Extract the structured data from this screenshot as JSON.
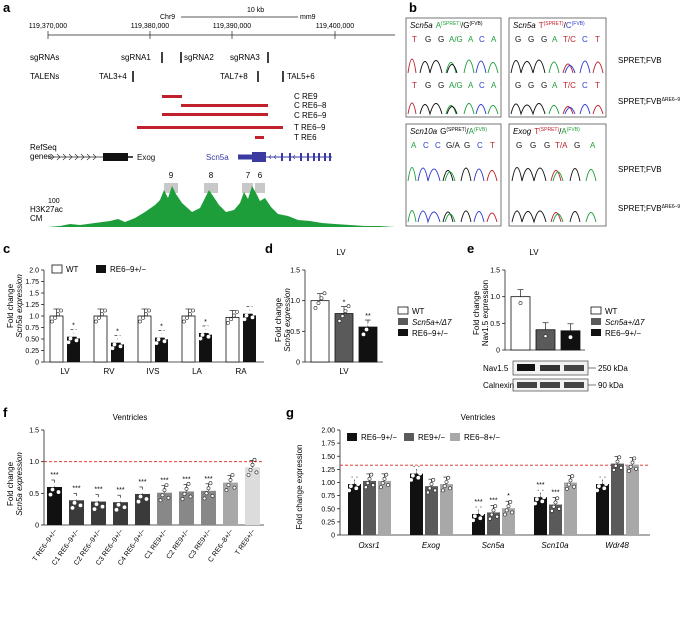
{
  "panel_labels": {
    "a": "a",
    "b": "b",
    "c": "c",
    "d": "d",
    "e": "e",
    "f": "f",
    "g": "g"
  },
  "panel_a": {
    "genome_coords": [
      "119,370,000",
      "119,380,000",
      "119,390,000",
      "119,400,000"
    ],
    "chrom": "Chr9",
    "scale": "10 kb",
    "assembly": "mm9",
    "row_labels": {
      "sgrnas": "sgRNAs",
      "talens": "TALENs",
      "refseq": "RefSeq",
      "refseq2": "genes",
      "h3k": "H3K27ac",
      "cm": "CM",
      "hundred": "100"
    },
    "sgrna_names": [
      "sgRNA1",
      "sgRNA2",
      "sgRNA3"
    ],
    "talen_names": [
      "TAL3+4",
      "TAL7+8",
      "TAL5+6"
    ],
    "deletions": [
      "C RE9",
      "C RE6–8",
      "C RE6–9",
      "T RE6–9",
      "T RE6"
    ],
    "genes": [
      "Exog",
      "Scn5a"
    ],
    "re_numbers": [
      "9",
      "8",
      "7",
      "6"
    ]
  },
  "panel_b": {
    "boxes": [
      {
        "gene": "Scn5a",
        "allele_a": "A",
        "allele_a_strain": "(SPRET)",
        "sep": "/",
        "allele_b": "G",
        "allele_b_strain": "(FVB)",
        "bases": [
          "T",
          "G",
          "G",
          "A/G",
          "A",
          "C",
          "A"
        ]
      },
      {
        "gene": "Scn5a",
        "allele_a": "T",
        "allele_a_strain": "(SPRET)",
        "sep": "/",
        "allele_b": "C",
        "allele_b_strain": "(FVB)",
        "bases": [
          "G",
          "G",
          "G",
          "A",
          "T/C",
          "C",
          "T"
        ]
      },
      {
        "gene": "Scn10a",
        "allele_a": "G",
        "allele_a_strain": "(SPRET)",
        "sep": "/",
        "allele_b": "A",
        "allele_b_strain": "(FVB)",
        "bases": [
          "A",
          "C",
          "C",
          "G/A",
          "G",
          "C",
          "T"
        ]
      },
      {
        "gene": "Exog",
        "allele_a": "T",
        "allele_a_strain": "(SPRET)",
        "sep": "/",
        "allele_b": "A",
        "allele_b_strain": "(FVB)",
        "bases": [
          "G",
          "G",
          "G",
          "T/A",
          "G",
          "A"
        ]
      }
    ],
    "row_labels": [
      "SPRET;FVB",
      "SPRET;FVB",
      "SPRET;FVB",
      "SPRET;FVB"
    ],
    "row_superscripts": [
      "",
      "ΔRE6–9",
      "",
      "ΔRE6–9"
    ]
  },
  "chart_data": [
    {
      "panel": "c",
      "type": "bar",
      "categories": [
        "LV",
        "RV",
        "IVS",
        "LA",
        "RA"
      ],
      "series": [
        {
          "name": "WT",
          "values": [
            1.0,
            1.0,
            1.0,
            1.0,
            0.97
          ]
        },
        {
          "name": "RE6–9+/−",
          "values": [
            0.55,
            0.42,
            0.53,
            0.63,
            1.05
          ]
        }
      ],
      "stars": [
        "*",
        "*",
        "*",
        "*",
        ""
      ],
      "ylabel": "Fold change",
      "ylabel2": "Scn5a expression",
      "ylim": [
        0,
        2.0
      ],
      "yticks": [
        "0",
        "0.25",
        "0.50",
        "0.75",
        "1.0",
        "1.25",
        "1.5",
        "1.75",
        "2.0"
      ]
    },
    {
      "panel": "d",
      "type": "bar",
      "title": "LV",
      "categories": [
        "LV"
      ],
      "series": [
        {
          "name": "WT",
          "values": [
            1.0
          ]
        },
        {
          "name": "Scn5a+/Δ7",
          "values": [
            0.79
          ]
        },
        {
          "name": "RE6–9+/−",
          "values": [
            0.57
          ]
        }
      ],
      "stars": [
        "",
        "*",
        "**"
      ],
      "ylabel": "Fold change",
      "ylabel2": "Scn5a expression",
      "ylim": [
        0,
        1.5
      ],
      "yticks": [
        "0",
        "0.5",
        "1.0",
        "1.5"
      ]
    },
    {
      "panel": "e",
      "type": "bar",
      "title": "LV",
      "categories": [
        "WT",
        "Scn5a+/Δ7",
        "RE6–9+/−"
      ],
      "values": [
        1.0,
        0.38,
        0.36
      ],
      "ylabel": "Fold change",
      "ylabel2": "Nav1.5 expression",
      "ylim": [
        0,
        1.5
      ],
      "yticks": [
        "0",
        "0.5",
        "1.0",
        "1.5"
      ],
      "blot_labels": [
        "Nav1.5",
        "Calnexin"
      ],
      "blot_sizes": [
        "250 kDa",
        "90 kDa"
      ]
    },
    {
      "panel": "f",
      "type": "bar",
      "title": "Ventricles",
      "categories": [
        "T RE6–9+/−",
        "C1 RE6–9+/−",
        "C2 RE6–9+/−",
        "C3 RE6–9+/−",
        "C4 RE6–9+/−",
        "C1 RE9+/−",
        "C2 RE9+/−",
        "C3 RE9+/−",
        "C RE6–8+/−",
        "T RE6+/−"
      ],
      "values": [
        0.6,
        0.39,
        0.37,
        0.36,
        0.49,
        0.51,
        0.53,
        0.54,
        0.67,
        0.91
      ],
      "stars": [
        "***",
        "***",
        "***",
        "***",
        "***",
        "***",
        "***",
        "***",
        "",
        ""
      ],
      "ylabel": "Fold change",
      "ylabel2": "Scn5a expression",
      "ylim": [
        0,
        1.5
      ],
      "yticks": [
        "0",
        "0.5",
        "1.0",
        "1.5"
      ],
      "reference_line": 1.0
    },
    {
      "panel": "g",
      "type": "bar",
      "title": "Ventricles",
      "categories": [
        "Oxsr1",
        "Exog",
        "Scn5a",
        "Scn10a",
        "Wdr48"
      ],
      "series": [
        {
          "name": "RE6–9+/−",
          "values": [
            0.97,
            1.17,
            0.4,
            0.72,
            0.97
          ]
        },
        {
          "name": "RE9+/−",
          "values": [
            1.03,
            0.93,
            0.43,
            0.58,
            1.36
          ]
        },
        {
          "name": "RE6–8+/−",
          "values": [
            1.03,
            0.97,
            0.51,
            1.0,
            1.34
          ]
        }
      ],
      "stars": [
        [
          "",
          "",
          ""
        ],
        [
          "",
          "",
          ""
        ],
        [
          "***",
          "***",
          "*"
        ],
        [
          "***",
          "***",
          ""
        ],
        [
          "",
          "",
          ""
        ]
      ],
      "ylabel": "Fold change expression",
      "ylim": [
        0,
        2.0
      ],
      "yticks": [
        "0",
        "0.25",
        "0.50",
        "0.75",
        "1.00",
        "1.25",
        "1.50",
        "1.75",
        "2.00"
      ],
      "reference_line": 1.33
    }
  ],
  "colors": {
    "red": "#c0202a",
    "green": "#1e9e3a",
    "gene_blue": "#3a3aa0",
    "re_gray": "#c8c8c8",
    "dark": "#111111",
    "mid": "#5a5a5a",
    "light": "#a8a8a8",
    "lighter": "#dcdcdc",
    "dashed": "#e0201c"
  }
}
